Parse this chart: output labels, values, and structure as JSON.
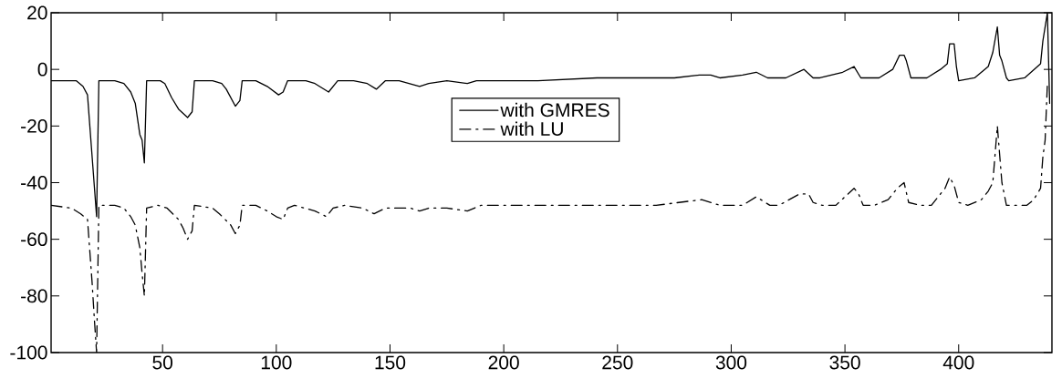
{
  "chart_data": {
    "type": "line",
    "xlim": [
      1,
      441
    ],
    "ylim": [
      -100,
      20
    ],
    "xticks": [
      50,
      100,
      150,
      200,
      250,
      300,
      350,
      400
    ],
    "yticks": [
      -100,
      -80,
      -60,
      -40,
      -20,
      0,
      20
    ],
    "legend": "top",
    "series": [
      {
        "name": "with GMRES",
        "color": "#000000",
        "line_style": "solid",
        "x": [
          1,
          9,
          12,
          15,
          17,
          21,
          22,
          29,
          33,
          36,
          38,
          40,
          41,
          42,
          43,
          49,
          51,
          54,
          57,
          61,
          63,
          64,
          72,
          76,
          78,
          82,
          84,
          85,
          91,
          96,
          101,
          103,
          105,
          113,
          117,
          123,
          127,
          134,
          140,
          144,
          148,
          154,
          163,
          167,
          175,
          184,
          188,
          215,
          241,
          267,
          275,
          286,
          291,
          295,
          305,
          311,
          316,
          324,
          332,
          336,
          339,
          349,
          354,
          357,
          358,
          365,
          371,
          374,
          376,
          377,
          379,
          386,
          392,
          395,
          396,
          398,
          399,
          400,
          407,
          413,
          415,
          417,
          418,
          419,
          421,
          422,
          429,
          436,
          437,
          439,
          440
        ],
        "values": [
          -4,
          -4,
          -4,
          -6,
          -9,
          -52,
          -4,
          -4,
          -5,
          -8,
          -12,
          -23,
          -25,
          -33,
          -4,
          -4,
          -5,
          -10,
          -14,
          -17,
          -15,
          -4,
          -4,
          -5,
          -7,
          -13,
          -11,
          -4,
          -4,
          -6,
          -9,
          -8,
          -4,
          -4,
          -5,
          -8,
          -4,
          -4,
          -5,
          -7,
          -4,
          -4,
          -6,
          -5,
          -4,
          -5,
          -4,
          -4,
          -3,
          -3,
          -3,
          -2,
          -2,
          -3,
          -2,
          -1,
          -3,
          -3,
          0,
          -3,
          -3,
          -1,
          1,
          -3,
          -3,
          -3,
          0,
          5,
          5,
          3,
          -3,
          -3,
          0,
          2,
          9,
          9,
          1,
          -4,
          -3,
          1,
          6,
          15,
          5,
          3,
          -3,
          -4,
          -3,
          2,
          10,
          20,
          -12
        ]
      },
      {
        "name": "with LU",
        "color": "#000000",
        "line_style": "dashdot",
        "x": [
          1,
          10,
          14,
          17,
          19,
          20,
          21,
          22,
          29,
          33,
          36,
          38,
          40,
          41,
          42,
          43,
          48,
          52,
          57,
          59,
          61,
          63,
          64,
          72,
          75,
          80,
          82,
          84,
          85,
          91,
          96,
          100,
          103,
          105,
          108,
          117,
          122,
          125,
          130,
          138,
          143,
          148,
          159,
          163,
          167,
          175,
          184,
          190,
          215,
          241,
          267,
          287,
          295,
          305,
          311,
          317,
          321,
          330,
          334,
          336,
          340,
          346,
          354,
          356,
          358,
          363,
          369,
          373,
          376,
          378,
          383,
          388,
          392,
          394,
          396,
          398,
          400,
          404,
          410,
          413,
          415,
          417,
          419,
          421,
          426,
          430,
          433,
          436,
          437,
          438,
          439
        ],
        "values": [
          -48,
          -49,
          -51,
          -53,
          -75,
          -88,
          -100,
          -48,
          -48,
          -49,
          -52,
          -55,
          -63,
          -72,
          -80,
          -49,
          -48,
          -49,
          -53,
          -56,
          -60,
          -57,
          -48,
          -49,
          -51,
          -55,
          -58,
          -55,
          -48,
          -48,
          -50,
          -52,
          -53,
          -49,
          -48,
          -50,
          -52,
          -49,
          -48,
          -49,
          -51,
          -49,
          -49,
          -50,
          -49,
          -49,
          -50,
          -48,
          -48,
          -48,
          -48,
          -46,
          -48,
          -48,
          -45,
          -48,
          -48,
          -44,
          -44,
          -47,
          -48,
          -48,
          -42,
          -44,
          -48,
          -48,
          -46,
          -42,
          -40,
          -47,
          -48,
          -48,
          -44,
          -42,
          -38,
          -41,
          -47,
          -48,
          -46,
          -43,
          -40,
          -20,
          -40,
          -48,
          -48,
          -48,
          -46,
          -42,
          -31,
          -25,
          -5
        ]
      }
    ]
  }
}
